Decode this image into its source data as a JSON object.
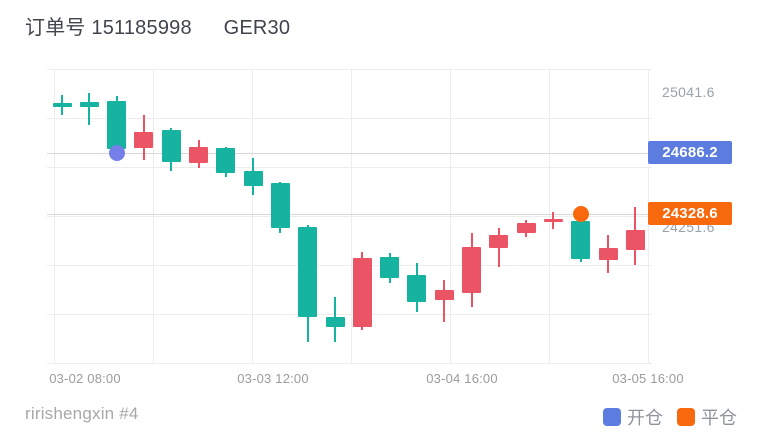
{
  "header": {
    "title_label": "订单号",
    "order_id": "151185998",
    "symbol": "GER30"
  },
  "footer": {
    "account": "ririshengxin #4"
  },
  "legend": [
    {
      "label": "开仓",
      "color": "#5c7ce0"
    },
    {
      "label": "平仓",
      "color": "#f8690e"
    }
  ],
  "colors": {
    "up": "#eb5465",
    "down": "#17b3a1",
    "open_marker": "#7480e8",
    "close_marker": "#f8690e",
    "gridline": "#ededed",
    "price_line": "#d8d8d8"
  },
  "chart_data": {
    "type": "candlestick",
    "title": "订单号 151185998 GER30",
    "x_labels": [
      "03-02 08:00",
      "03-03 12:00",
      "03-04 16:00",
      "03-05 16:00"
    ],
    "y_axis_labels": [
      {
        "text": "25041.6",
        "price": 25041.6
      },
      {
        "text": "24251.6",
        "price": 24251.6
      }
    ],
    "price_markers": [
      {
        "type": "open",
        "label": "24686.2",
        "price": 24686.2,
        "candle_index": 2,
        "badge_color": "#5c7ce0",
        "dot_color": "#7480e8"
      },
      {
        "type": "close",
        "label": "24328.6",
        "price": 24328.6,
        "candle_index": 19,
        "badge_color": "#f8690e",
        "dot_color": "#f8690e"
      }
    ],
    "y_range_hint": [
      23550,
      25060
    ],
    "grid": true,
    "candles": [
      {
        "o": 24975.5,
        "h": 25024.0,
        "l": 24907.0,
        "c": 24950.9
      },
      {
        "o": 24984.8,
        "h": 25035.7,
        "l": 24848.5,
        "c": 24955.6
      },
      {
        "o": 24988.9,
        "h": 25015.3,
        "l": 24708.0,
        "c": 24708.0
      },
      {
        "o": 24712.2,
        "h": 24907.0,
        "l": 24643.7,
        "c": 24809.3
      },
      {
        "o": 24819.2,
        "h": 24829.2,
        "l": 24579.3,
        "c": 24632.0
      },
      {
        "o": 24624.3,
        "h": 24760.7,
        "l": 24595.1,
        "c": 24721.5
      },
      {
        "o": 24712.2,
        "h": 24721.5,
        "l": 24546.0,
        "c": 24565.9
      },
      {
        "o": 24579.3,
        "h": 24653.6,
        "l": 24438.9,
        "c": 24491.5
      },
      {
        "o": 24507.3,
        "h": 24516.7,
        "l": 24214.7,
        "c": 24244.0
      },
      {
        "o": 24253.4,
        "h": 24263.3,
        "l": 23580.4,
        "c": 23726.7
      },
      {
        "o": 23726.7,
        "h": 23843.7,
        "l": 23580.4,
        "c": 23668.2
      },
      {
        "o": 23668.2,
        "h": 24107.0,
        "l": 23648.9,
        "c": 24068.4
      },
      {
        "o": 24077.8,
        "h": 24097.7,
        "l": 23922.1,
        "c": 23951.4
      },
      {
        "o": 23970.7,
        "h": 24039.2,
        "l": 23756.0,
        "c": 23814.5
      },
      {
        "o": 23824.4,
        "h": 23941.5,
        "l": 23697.5,
        "c": 23883.0
      },
      {
        "o": 23863.7,
        "h": 24214.7,
        "l": 23785.2,
        "c": 24136.4
      },
      {
        "o": 24127.0,
        "h": 24244.0,
        "l": 24019.3,
        "c": 24204.8
      },
      {
        "o": 24214.7,
        "h": 24292.5,
        "l": 24194.8,
        "c": 24273.2
      },
      {
        "o": 24280.9,
        "h": 24337.7,
        "l": 24238.1,
        "c": 24298.5
      },
      {
        "o": 24288.4,
        "h": 24328.6,
        "l": 24046.7,
        "c": 24062.5
      },
      {
        "o": 24058.6,
        "h": 24204.8,
        "l": 23980.6,
        "c": 24127.0
      },
      {
        "o": 24117.1,
        "h": 24370.4,
        "l": 24029.3,
        "c": 24234.1
      }
    ]
  }
}
